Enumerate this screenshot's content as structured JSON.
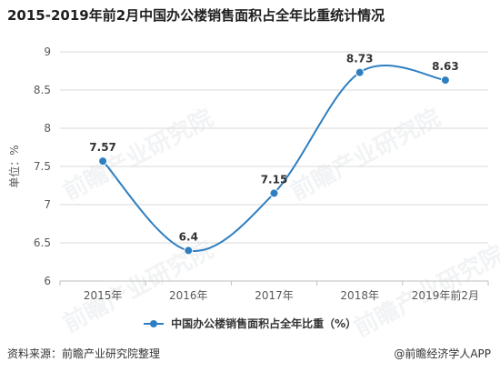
{
  "title": "2015-2019年前2月中国办公楼销售面积占全年比重统计情况",
  "source": "资料来源：前瞻产业研究院整理",
  "credit": "@前瞻经济学人APP",
  "watermark_text": "前瞻产业研究院",
  "colors": {
    "series": "#2e7fc1",
    "grid": "#d9d9d9",
    "axis_text": "#595959"
  },
  "chart_data": {
    "type": "line",
    "categories": [
      "2015年",
      "2016年",
      "2017年",
      "2018年",
      "2019年前2月"
    ],
    "series": [
      {
        "name": "中国办公楼销售面积占全年比重（%）",
        "values": [
          7.57,
          6.4,
          7.15,
          8.73,
          8.63
        ],
        "labels": [
          "7.57",
          "6.4",
          "7.15",
          "8.73",
          "8.63"
        ]
      }
    ],
    "ylabel": "单位：%",
    "xlabel": "",
    "ylim": [
      6,
      9
    ],
    "yticks": [
      "6",
      "6.5",
      "7",
      "7.5",
      "8",
      "8.5",
      "9"
    ],
    "ytick_values": [
      6,
      6.5,
      7,
      7.5,
      8,
      8.5,
      9
    ],
    "grid": true,
    "legend": "bottom",
    "smooth": true
  }
}
